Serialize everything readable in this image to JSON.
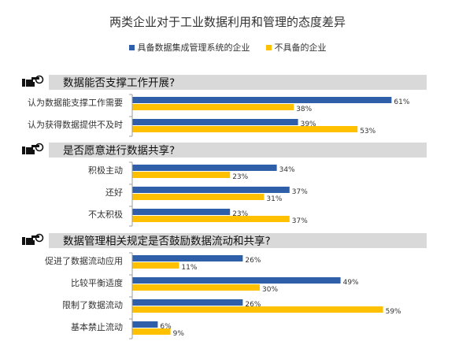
{
  "title": "两类企业对于工业数据利用和管理的态度差异",
  "legend": [
    {
      "label": "具备数据集成管理系统的企业",
      "color": "#2e5fa8"
    },
    {
      "label": "不具备的企业",
      "color": "#ffc000"
    }
  ],
  "chart_data": {
    "type": "bar",
    "orientation": "horizontal",
    "unit": "%",
    "series_names": [
      "具备数据集成管理系统的企业",
      "不具备的企业"
    ],
    "series_colors": [
      "#2e5fa8",
      "#ffc000"
    ],
    "sections": [
      {
        "title": "数据能否支撑工作开展?",
        "icon": "pointing-hand-icon",
        "items": [
          {
            "label": "认为数据能支撑工作需要",
            "values": [
              61,
              38
            ]
          },
          {
            "label": "认为获得数据提供不及时",
            "values": [
              39,
              53
            ]
          }
        ]
      },
      {
        "title": "是否愿意进行数据共享?",
        "icon": "pointing-hand-icon",
        "items": [
          {
            "label": "积极主动",
            "values": [
              34,
              23
            ]
          },
          {
            "label": "还好",
            "values": [
              37,
              31
            ]
          },
          {
            "label": "不太积极",
            "values": [
              23,
              37
            ]
          }
        ]
      },
      {
        "title": "数据管理相关规定是否鼓励数据流动和共享?",
        "icon": "pointing-hand-icon",
        "items": [
          {
            "label": "促进了数据流动应用",
            "values": [
              26,
              11
            ]
          },
          {
            "label": "比较平衡适度",
            "values": [
              49,
              30
            ]
          },
          {
            "label": "限制了数据流动",
            "values": [
              26,
              59
            ]
          },
          {
            "label": "基本禁止流动",
            "values": [
              6,
              9
            ]
          }
        ]
      }
    ]
  }
}
